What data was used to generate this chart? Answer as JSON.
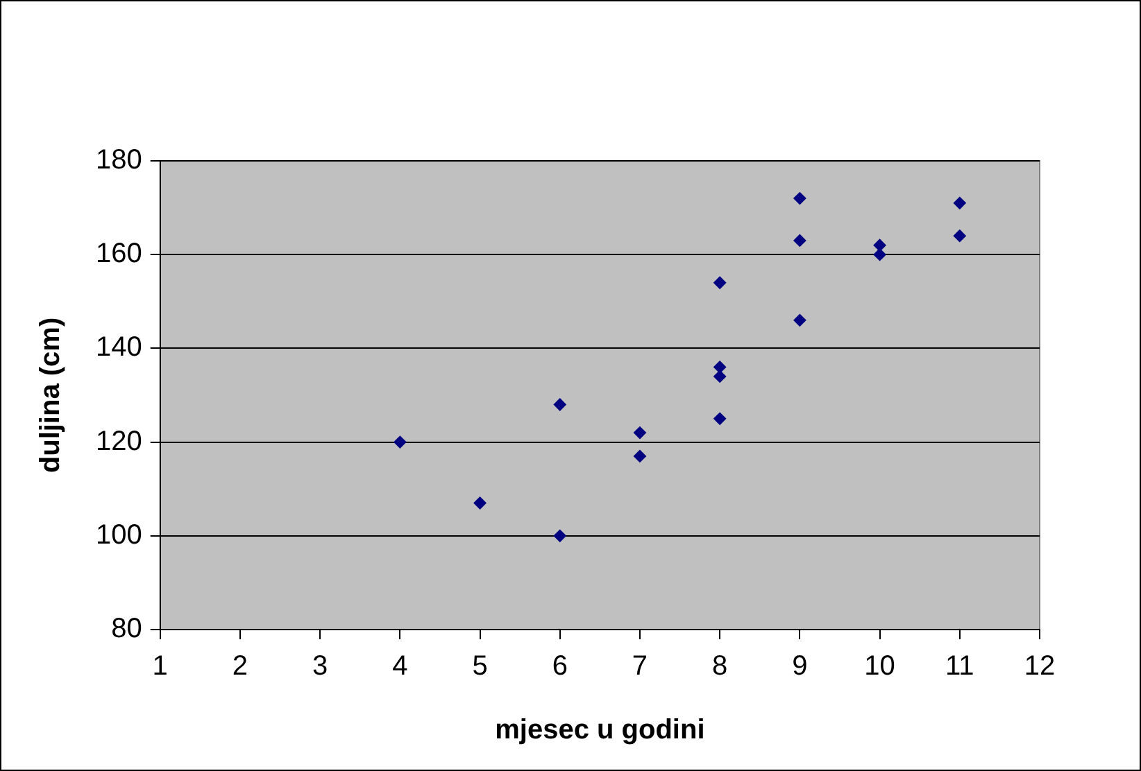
{
  "chart_data": {
    "type": "scatter",
    "xlabel": "mjesec u godini",
    "ylabel": "duljina (cm)",
    "x": [
      4,
      5,
      6,
      6,
      7,
      7,
      8,
      8,
      8,
      8,
      9,
      9,
      9,
      10,
      10,
      11,
      11
    ],
    "series": [
      {
        "color": "#000080",
        "values": [
          120,
          107,
          128,
          100,
          122,
          117,
          154,
          136,
          134,
          125,
          172,
          163,
          146,
          162,
          160,
          171,
          164
        ]
      }
    ],
    "xlim": [
      1,
      12
    ],
    "xticks": [
      1,
      2,
      3,
      4,
      5,
      6,
      7,
      8,
      9,
      10,
      11,
      12
    ],
    "ylim": [
      80,
      180
    ],
    "yticks": [
      80,
      100,
      120,
      140,
      160,
      180
    ],
    "grid": "y",
    "marker": "diamond",
    "legend": false
  }
}
